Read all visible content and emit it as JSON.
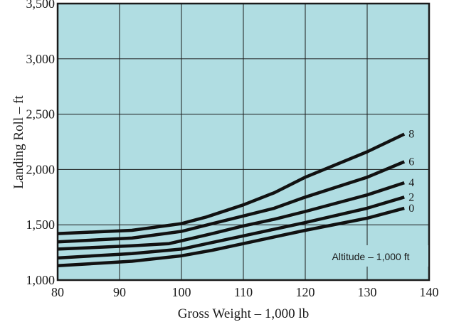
{
  "chart_data": {
    "type": "line",
    "title": "",
    "xlabel": "Gross Weight – 1,000 lb",
    "ylabel": "Landing Roll – ft",
    "xlim": [
      80,
      140
    ],
    "ylim": [
      1000,
      3500
    ],
    "x_ticks": [
      80,
      90,
      100,
      110,
      120,
      130,
      140
    ],
    "y_ticks": [
      1000,
      1500,
      2000,
      2500,
      3000,
      3500
    ],
    "x_tick_labels": [
      "80",
      "90",
      "100",
      "110",
      "120",
      "130",
      "140"
    ],
    "y_tick_labels": [
      "1,000",
      "1,500",
      "2,000",
      "2,500",
      "3,000",
      "3,500"
    ],
    "grid": true,
    "plot_background": "#b0dde2",
    "line_color": "#111111",
    "annotation": "Altitude – 1,000 ft",
    "series": [
      {
        "name": "8",
        "points": [
          [
            80,
            1420
          ],
          [
            92,
            1450
          ],
          [
            100,
            1510
          ],
          [
            104,
            1570
          ],
          [
            110,
            1680
          ],
          [
            115,
            1790
          ],
          [
            120,
            1930
          ],
          [
            130,
            2160
          ],
          [
            136,
            2320
          ]
        ]
      },
      {
        "name": "6",
        "points": [
          [
            80,
            1345
          ],
          [
            92,
            1380
          ],
          [
            100,
            1440
          ],
          [
            105,
            1510
          ],
          [
            110,
            1580
          ],
          [
            115,
            1650
          ],
          [
            120,
            1750
          ],
          [
            130,
            1930
          ],
          [
            136,
            2070
          ]
        ]
      },
      {
        "name": "4",
        "points": [
          [
            80,
            1280
          ],
          [
            92,
            1310
          ],
          [
            98,
            1330
          ],
          [
            105,
            1420
          ],
          [
            110,
            1490
          ],
          [
            115,
            1550
          ],
          [
            120,
            1620
          ],
          [
            130,
            1770
          ],
          [
            136,
            1880
          ]
        ]
      },
      {
        "name": "2",
        "points": [
          [
            80,
            1200
          ],
          [
            92,
            1240
          ],
          [
            100,
            1280
          ],
          [
            105,
            1340
          ],
          [
            110,
            1400
          ],
          [
            115,
            1460
          ],
          [
            120,
            1520
          ],
          [
            130,
            1650
          ],
          [
            136,
            1750
          ]
        ]
      },
      {
        "name": "0",
        "points": [
          [
            80,
            1130
          ],
          [
            92,
            1170
          ],
          [
            100,
            1220
          ],
          [
            105,
            1270
          ],
          [
            110,
            1330
          ],
          [
            115,
            1390
          ],
          [
            120,
            1450
          ],
          [
            130,
            1560
          ],
          [
            136,
            1650
          ]
        ]
      }
    ]
  }
}
